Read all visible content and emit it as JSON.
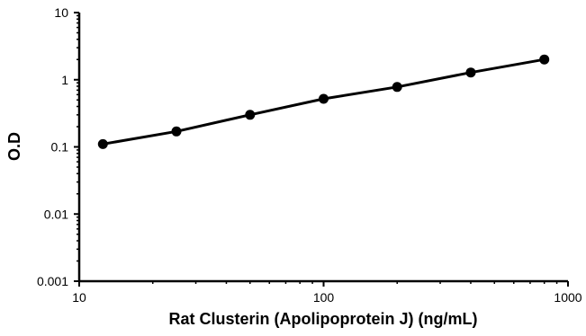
{
  "chart_data": {
    "type": "line",
    "x_scale": "log",
    "y_scale": "log",
    "xlabel": "Rat Clusterin (Apolipoprotein J) (ng/mL)",
    "ylabel": "O.D",
    "xlim": [
      10,
      1000
    ],
    "ylim": [
      0.001,
      10
    ],
    "x_ticks": [
      10,
      100,
      1000
    ],
    "x_tick_labels": [
      "10",
      "100",
      "1000"
    ],
    "y_ticks": [
      0.001,
      0.01,
      0.1,
      1,
      10
    ],
    "y_tick_labels": [
      "0.001",
      "0.01",
      "0.1",
      "1",
      "10"
    ],
    "grid": false,
    "legend": "none",
    "series": [
      {
        "x": [
          12.5,
          25,
          50,
          100,
          200,
          400,
          800
        ],
        "y": [
          0.11,
          0.17,
          0.3,
          0.52,
          0.78,
          1.28,
          2.0
        ]
      }
    ],
    "colors": {
      "line": "#000000",
      "marker": "#000000",
      "axis": "#000000"
    }
  }
}
